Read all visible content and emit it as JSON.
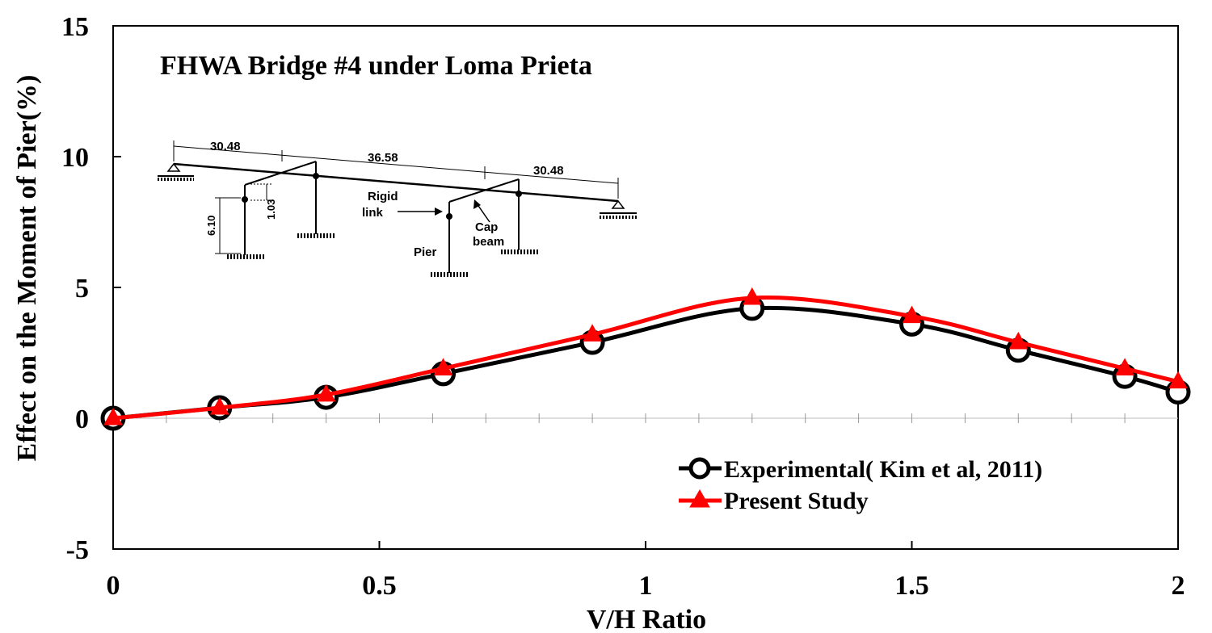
{
  "chart_data": {
    "type": "line",
    "title": "FHWA Bridge #4  under Loma Prieta",
    "xlabel": "V/H Ratio",
    "ylabel": "Effect on the Moment of Pier(%)",
    "xlim": [
      0,
      2
    ],
    "ylim": [
      -5,
      15
    ],
    "x_ticks": [
      "0",
      "0.5",
      "1",
      "1.5",
      "2"
    ],
    "y_ticks": [
      "15",
      "10",
      "5",
      "0",
      "-5"
    ],
    "x_tick_values": [
      0,
      0.5,
      1,
      1.5,
      2
    ],
    "y_tick_values": [
      15,
      10,
      5,
      0,
      -5
    ],
    "grid": false,
    "legend_position": "bottom-right",
    "series": [
      {
        "name": "Experimental( Kim et al, 2011)",
        "color": "#000000",
        "marker": "circle-open",
        "x": [
          0,
          0.2,
          0.4,
          0.62,
          0.9,
          1.2,
          1.5,
          1.7,
          1.9,
          2.0
        ],
        "y": [
          0,
          0.4,
          0.8,
          1.7,
          2.9,
          4.2,
          3.6,
          2.6,
          1.6,
          1.0
        ]
      },
      {
        "name": "Present Study",
        "color": "#ff0000",
        "marker": "triangle-filled",
        "x": [
          0,
          0.2,
          0.4,
          0.62,
          0.9,
          1.2,
          1.5,
          1.7,
          1.9,
          2.0
        ],
        "y": [
          0,
          0.4,
          0.9,
          1.9,
          3.2,
          4.6,
          3.9,
          2.9,
          1.9,
          1.4
        ]
      }
    ],
    "inset_labels": {
      "span1": "30.48",
      "span2": "36.58",
      "span3": "30.48",
      "height1": "6.10",
      "height2": "1.03",
      "rigid": "Rigid",
      "link": "link",
      "cap": "Cap",
      "beam": "beam",
      "pier": "Pier"
    }
  }
}
